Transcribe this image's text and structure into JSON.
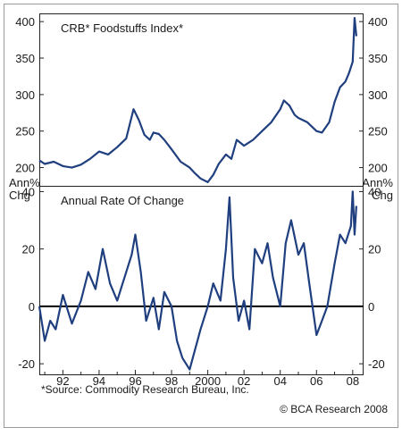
{
  "chart_data": [
    {
      "type": "line",
      "title": "CRB* Foodstuffs Index*",
      "ylim": [
        175,
        410
      ],
      "yticks": [
        200,
        250,
        300,
        350,
        400
      ],
      "xlim": [
        1990.7,
        2008.6
      ],
      "grid": false,
      "color": "#1f3f7f",
      "series": [
        {
          "x": [
            1990.7,
            1991.0,
            1991.5,
            1992.0,
            1992.5,
            1993.0,
            1993.5,
            1994.0,
            1994.5,
            1995.0,
            1995.5,
            1995.9,
            1996.2,
            1996.5,
            1996.8,
            1997.0,
            1997.3,
            1997.6,
            1998.0,
            1998.5,
            1999.0,
            1999.3,
            1999.6,
            2000.0,
            2000.3,
            2000.6,
            2001.0,
            2001.3,
            2001.6,
            2002.0,
            2002.5,
            2003.0,
            2003.5,
            2004.0,
            2004.2,
            2004.5,
            2004.8,
            2005.0,
            2005.5,
            2006.0,
            2006.3,
            2006.7,
            2007.0,
            2007.3,
            2007.6,
            2007.8,
            2008.0,
            2008.1,
            2008.2
          ],
          "values": [
            210,
            205,
            208,
            202,
            200,
            204,
            212,
            222,
            218,
            228,
            240,
            280,
            265,
            245,
            238,
            248,
            246,
            238,
            225,
            208,
            200,
            192,
            185,
            180,
            190,
            205,
            218,
            212,
            238,
            230,
            238,
            250,
            262,
            280,
            292,
            285,
            272,
            268,
            262,
            250,
            248,
            262,
            290,
            310,
            318,
            330,
            345,
            405,
            380
          ]
        }
      ]
    },
    {
      "type": "line",
      "title": "Annual Rate Of Change",
      "ylabel": "Ann%\nChg",
      "ylim": [
        -24,
        42
      ],
      "yticks": [
        -20,
        0,
        20,
        40
      ],
      "xlim": [
        1990.7,
        2008.6
      ],
      "xticks": [
        "92",
        "94",
        "96",
        "98",
        "2000",
        "02",
        "04",
        "06",
        "08"
      ],
      "grid": false,
      "color": "#1f3f7f",
      "series": [
        {
          "x": [
            1990.7,
            1991.0,
            1991.3,
            1991.6,
            1992.0,
            1992.5,
            1993.0,
            1993.4,
            1993.8,
            1994.2,
            1994.6,
            1995.0,
            1995.4,
            1995.8,
            1996.0,
            1996.3,
            1996.6,
            1997.0,
            1997.3,
            1997.6,
            1998.0,
            1998.3,
            1998.6,
            1999.0,
            1999.3,
            1999.6,
            2000.0,
            2000.3,
            2000.7,
            2001.0,
            2001.2,
            2001.4,
            2001.7,
            2002.0,
            2002.3,
            2002.6,
            2003.0,
            2003.3,
            2003.6,
            2004.0,
            2004.3,
            2004.6,
            2005.0,
            2005.3,
            2005.6,
            2006.0,
            2006.3,
            2006.6,
            2007.0,
            2007.3,
            2007.6,
            2007.9,
            2008.0,
            2008.1,
            2008.2
          ],
          "values": [
            0,
            -12,
            -5,
            -8,
            4,
            -6,
            2,
            12,
            6,
            20,
            8,
            2,
            10,
            18,
            25,
            12,
            -5,
            3,
            -8,
            5,
            0,
            -12,
            -18,
            -22,
            -15,
            -8,
            0,
            8,
            2,
            20,
            38,
            10,
            -5,
            2,
            -8,
            20,
            15,
            22,
            10,
            0,
            22,
            30,
            18,
            22,
            8,
            -10,
            -5,
            0,
            15,
            25,
            22,
            28,
            40,
            25,
            35
          ]
        }
      ]
    }
  ],
  "footer": {
    "source": "*Source: Commodity Research Bureau, Inc.",
    "credit": "© BCA Research 2008"
  }
}
